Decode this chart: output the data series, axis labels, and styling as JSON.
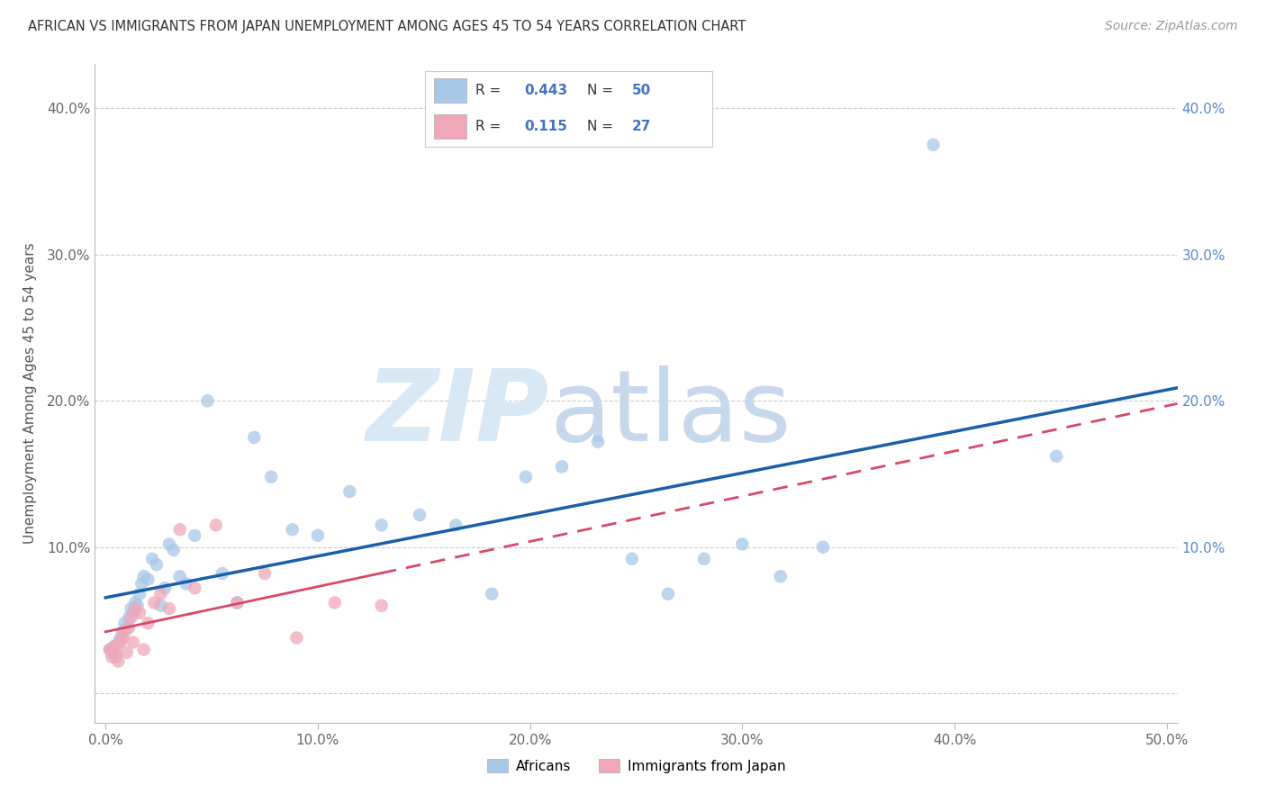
{
  "title": "AFRICAN VS IMMIGRANTS FROM JAPAN UNEMPLOYMENT AMONG AGES 45 TO 54 YEARS CORRELATION CHART",
  "source": "Source: ZipAtlas.com",
  "ylabel": "Unemployment Among Ages 45 to 54 years",
  "xlim": [
    -0.005,
    0.505
  ],
  "ylim": [
    -0.02,
    0.43
  ],
  "x_ticks": [
    0.0,
    0.1,
    0.2,
    0.3,
    0.4,
    0.5
  ],
  "y_ticks": [
    0.0,
    0.1,
    0.2,
    0.3,
    0.4
  ],
  "x_tick_labels": [
    "0.0%",
    "10.0%",
    "20.0%",
    "30.0%",
    "40.0%",
    "50.0%"
  ],
  "y_tick_labels": [
    "",
    "10.0%",
    "20.0%",
    "30.0%",
    "40.0%"
  ],
  "y_tick_labels_right": [
    "",
    "10.0%",
    "20.0%",
    "30.0%",
    "40.0%"
  ],
  "legend_african_R": "0.443",
  "legend_african_N": "50",
  "legend_japan_R": "0.115",
  "legend_japan_N": "27",
  "blue_scatter": "#a8c8e8",
  "pink_scatter": "#f0a8b8",
  "blue_line": "#1a5fa8",
  "pink_line": "#d84868",
  "watermark_zip_color": "#d8e8f5",
  "watermark_atlas_color": "#c8d8ec",
  "african_x": [
    0.002,
    0.003,
    0.004,
    0.005,
    0.006,
    0.007,
    0.008,
    0.009,
    0.01,
    0.011,
    0.012,
    0.013,
    0.014,
    0.015,
    0.016,
    0.017,
    0.018,
    0.02,
    0.022,
    0.024,
    0.026,
    0.028,
    0.03,
    0.032,
    0.035,
    0.038,
    0.042,
    0.048,
    0.055,
    0.062,
    0.07,
    0.078,
    0.088,
    0.1,
    0.115,
    0.13,
    0.148,
    0.165,
    0.182,
    0.198,
    0.215,
    0.232,
    0.248,
    0.265,
    0.282,
    0.3,
    0.318,
    0.338,
    0.39,
    0.448
  ],
  "african_y": [
    0.03,
    0.028,
    0.032,
    0.025,
    0.035,
    0.038,
    0.042,
    0.048,
    0.045,
    0.052,
    0.058,
    0.055,
    0.062,
    0.06,
    0.068,
    0.075,
    0.08,
    0.078,
    0.092,
    0.088,
    0.06,
    0.072,
    0.102,
    0.098,
    0.08,
    0.075,
    0.108,
    0.2,
    0.082,
    0.062,
    0.175,
    0.148,
    0.112,
    0.108,
    0.138,
    0.115,
    0.122,
    0.115,
    0.068,
    0.148,
    0.155,
    0.172,
    0.092,
    0.068,
    0.092,
    0.102,
    0.08,
    0.1,
    0.375,
    0.162
  ],
  "japan_x": [
    0.002,
    0.003,
    0.004,
    0.005,
    0.006,
    0.007,
    0.008,
    0.009,
    0.01,
    0.011,
    0.012,
    0.013,
    0.014,
    0.016,
    0.018,
    0.02,
    0.023,
    0.026,
    0.03,
    0.035,
    0.042,
    0.052,
    0.062,
    0.075,
    0.09,
    0.108,
    0.13
  ],
  "japan_y": [
    0.03,
    0.025,
    0.032,
    0.028,
    0.022,
    0.035,
    0.038,
    0.042,
    0.028,
    0.045,
    0.052,
    0.035,
    0.058,
    0.055,
    0.03,
    0.048,
    0.062,
    0.068,
    0.058,
    0.112,
    0.072,
    0.115,
    0.062,
    0.082,
    0.038,
    0.062,
    0.06
  ]
}
